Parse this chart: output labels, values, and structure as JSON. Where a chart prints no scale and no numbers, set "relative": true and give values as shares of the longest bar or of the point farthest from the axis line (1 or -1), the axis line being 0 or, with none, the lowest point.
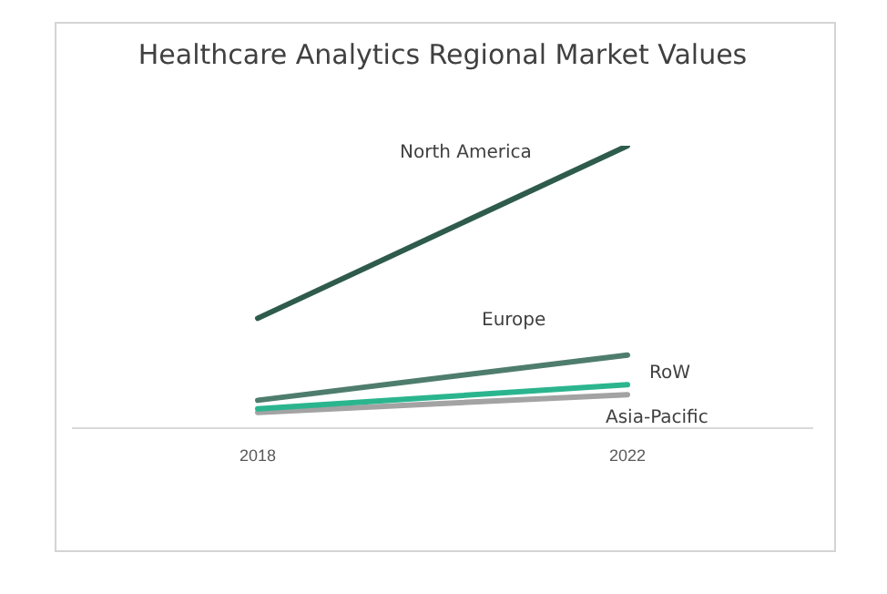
{
  "chart_data": {
    "type": "line",
    "title": "Healthcare Analytics Regional Market Values",
    "categories": [
      "2018",
      "2022"
    ],
    "relative": true,
    "legend": false,
    "marker": "none",
    "grid": false,
    "series": [
      {
        "name": "North America",
        "color": "#2e5b4c",
        "values": [
          0.39,
          1
        ]
      },
      {
        "name": "Europe",
        "color": "#4f7d6d",
        "values": [
          0.1,
          0.26
        ]
      },
      {
        "name": "RoW",
        "color": "#2bb58f",
        "values": [
          0.07,
          0.155
        ]
      },
      {
        "name": "Asia-Pacific",
        "color": "#a3a3a3",
        "values": [
          0.057,
          0.12
        ]
      }
    ]
  }
}
